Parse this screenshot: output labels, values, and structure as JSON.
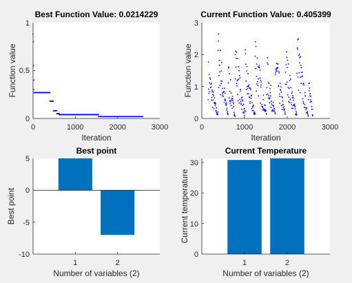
{
  "figure_background": "#f0f0f0",
  "chart_data": [
    {
      "type": "line",
      "title": "Best Function Value: 0.0214229",
      "xlabel": "Iteration",
      "ylabel": "Function value",
      "xlim": [
        0,
        3000
      ],
      "ylim": [
        0,
        1
      ],
      "xticks": [
        "0",
        "1000",
        "2000",
        "3000"
      ],
      "yticks": [
        "0",
        "0.5",
        "1"
      ],
      "marker_color": "#0000ff",
      "series": [
        {
          "x": [
            0,
            5,
            10,
            15,
            20
          ],
          "y": [
            0.88,
            0.8,
            0.55,
            0.4,
            0.3
          ]
        },
        {
          "x": [
            20,
            400
          ],
          "y": [
            0.27,
            0.27
          ]
        },
        {
          "x": [
            400,
            480
          ],
          "y": [
            0.18,
            0.18
          ]
        },
        {
          "x": [
            480,
            560
          ],
          "y": [
            0.08,
            0.08
          ]
        },
        {
          "x": [
            560,
            620
          ],
          "y": [
            0.05,
            0.05
          ]
        },
        {
          "x": [
            620,
            1550
          ],
          "y": [
            0.04,
            0.04
          ]
        },
        {
          "x": [
            1550,
            2600
          ],
          "y": [
            0.02,
            0.02
          ]
        }
      ]
    },
    {
      "type": "scatter",
      "title": "Current Function Value: 0.405399",
      "xlabel": "Iteration",
      "ylabel": "Function value",
      "xlim": [
        0,
        3000
      ],
      "ylim": [
        0,
        3
      ],
      "xticks": [
        "0",
        "1000",
        "2000",
        "3000"
      ],
      "yticks": [
        "0",
        "1",
        "2",
        "3"
      ],
      "marker_color": "#0000ff",
      "n_points": 2600,
      "bursts": [
        {
          "x": 150,
          "y": 1.5
        },
        {
          "x": 380,
          "y": 2.5
        },
        {
          "x": 620,
          "y": 1.5
        },
        {
          "x": 780,
          "y": 2.2
        },
        {
          "x": 1020,
          "y": 1.7
        },
        {
          "x": 1250,
          "y": 2.4
        },
        {
          "x": 1520,
          "y": 1.7
        },
        {
          "x": 1720,
          "y": 2.0
        },
        {
          "x": 1960,
          "y": 2.0
        },
        {
          "x": 2230,
          "y": 2.5
        },
        {
          "x": 2500,
          "y": 1.2
        }
      ]
    },
    {
      "type": "bar",
      "title": "Best point",
      "xlabel": "Number of variables (2)",
      "ylabel": "Best point",
      "categories": [
        "1",
        "2"
      ],
      "values": [
        5.3,
        -7.0
      ],
      "ylim": [
        -10,
        5
      ],
      "yticks": [
        "-10",
        "-5",
        "0",
        "5"
      ],
      "bar_color": "#0072bd"
    },
    {
      "type": "bar",
      "title": "Current Temperature",
      "xlabel": "Number of variables (2)",
      "ylabel": "Current temperature",
      "categories": [
        "1",
        "2"
      ],
      "values": [
        30.8,
        31.3
      ],
      "ylim": [
        0,
        31.3
      ],
      "yticks": [
        "0",
        "10",
        "20",
        "30"
      ],
      "bar_color": "#0072bd"
    }
  ]
}
